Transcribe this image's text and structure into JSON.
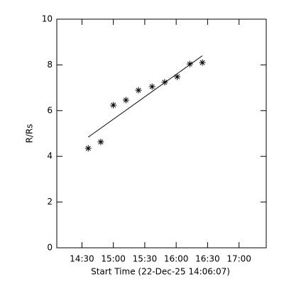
{
  "chart_data": {
    "type": "scatter",
    "xlabel": "Start Time (22-Dec-25 14:06:07)",
    "ylabel": "R/Rs",
    "xlim": [
      846,
      1046
    ],
    "ylim": [
      0,
      10
    ],
    "xticks": [
      {
        "value": 870,
        "label": "14:30"
      },
      {
        "value": 900,
        "label": "15:00"
      },
      {
        "value": 930,
        "label": "15:30"
      },
      {
        "value": 960,
        "label": "16:00"
      },
      {
        "value": 990,
        "label": "16:30"
      },
      {
        "value": 1020,
        "label": "17:00"
      }
    ],
    "yticks": [
      0,
      2,
      4,
      6,
      8,
      10
    ],
    "series": [
      {
        "type": "scatter",
        "marker": "asterisk",
        "color": "#000000",
        "x": [
          876,
          888,
          900,
          912,
          924,
          937,
          949,
          961,
          973,
          985
        ],
        "values": [
          4.35,
          4.63,
          6.24,
          6.46,
          6.89,
          7.05,
          7.24,
          7.48,
          8.04,
          8.1
        ]
      },
      {
        "type": "line",
        "color": "#000000",
        "x": [
          876,
          985
        ],
        "values": [
          4.84,
          8.4
        ]
      }
    ]
  }
}
